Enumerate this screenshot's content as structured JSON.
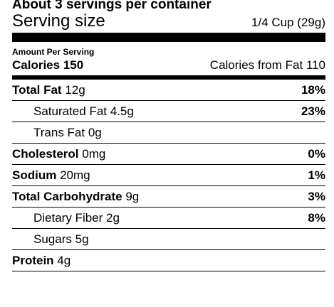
{
  "header": {
    "servings_per_container": "About 3 servings per container",
    "serving_size_label": "Serving size",
    "serving_size_value": "1/4 Cup (29g)"
  },
  "calories": {
    "amount_per_serving": "Amount Per Serving",
    "label": "Calories 150",
    "from_fat": "Calories from Fat 110"
  },
  "nutrients": [
    {
      "name": "Total Fat",
      "amount": "12g",
      "dv": "18%"
    },
    {
      "name": "Saturated Fat",
      "amount": "4.5g",
      "dv": "23%"
    },
    {
      "name": "Trans Fat",
      "amount": "0g",
      "dv": ""
    },
    {
      "name": "Cholesterol",
      "amount": "0mg",
      "dv": "0%"
    },
    {
      "name": "Sodium",
      "amount": "20mg",
      "dv": "1%"
    },
    {
      "name": "Total Carbohydrate",
      "amount": "9g",
      "dv": "3%"
    },
    {
      "name": "Dietary Fiber",
      "amount": "2g",
      "dv": "8%"
    },
    {
      "name": "Sugars",
      "amount": "5g",
      "dv": ""
    },
    {
      "name": "Protein",
      "amount": "4g",
      "dv": ""
    }
  ]
}
